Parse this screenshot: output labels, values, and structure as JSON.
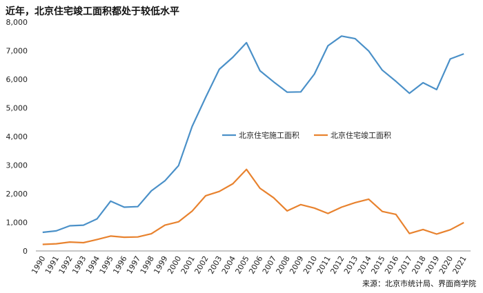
{
  "title": "近年，北京住宅竣工面积都处于较低水平",
  "source": "来源：北京市统计局、界面商学院",
  "chart_data": {
    "type": "line",
    "x": [
      "1990",
      "1991",
      "1992",
      "1993",
      "1994",
      "1995",
      "1996",
      "1997",
      "1998",
      "1999",
      "2000",
      "2001",
      "2002",
      "2003",
      "2004",
      "2005",
      "2006",
      "2007",
      "2008",
      "2009",
      "2010",
      "2011",
      "2012",
      "2013",
      "2014",
      "2015",
      "2016",
      "2017",
      "2018",
      "2019",
      "2020",
      "2021"
    ],
    "ylim": [
      0,
      8000
    ],
    "yticks": [
      0,
      1000,
      2000,
      3000,
      4000,
      5000,
      6000,
      7000,
      8000
    ],
    "ytick_labels": [
      "0",
      "1,000",
      "2,000",
      "3,000",
      "4,000",
      "5,000",
      "6,000",
      "7,000",
      "8,000"
    ],
    "grid": false,
    "legend_position": "center-right",
    "series": [
      {
        "name": "北京住宅施工面积",
        "color": "#4a90c8",
        "values": [
          650,
          700,
          880,
          900,
          1120,
          1740,
          1530,
          1550,
          2100,
          2450,
          2980,
          4350,
          5370,
          6350,
          6770,
          7280,
          6300,
          5910,
          5550,
          5560,
          6180,
          7170,
          7510,
          7420,
          6990,
          6320,
          5930,
          5510,
          5880,
          5640,
          6710,
          6890
        ]
      },
      {
        "name": "北京住宅竣工面积",
        "color": "#e8822e",
        "values": [
          230,
          250,
          310,
          290,
          400,
          520,
          480,
          490,
          600,
          900,
          1020,
          1390,
          1930,
          2080,
          2350,
          2850,
          2190,
          1860,
          1400,
          1620,
          1500,
          1310,
          1530,
          1690,
          1810,
          1380,
          1280,
          610,
          750,
          590,
          740,
          990
        ]
      }
    ]
  }
}
